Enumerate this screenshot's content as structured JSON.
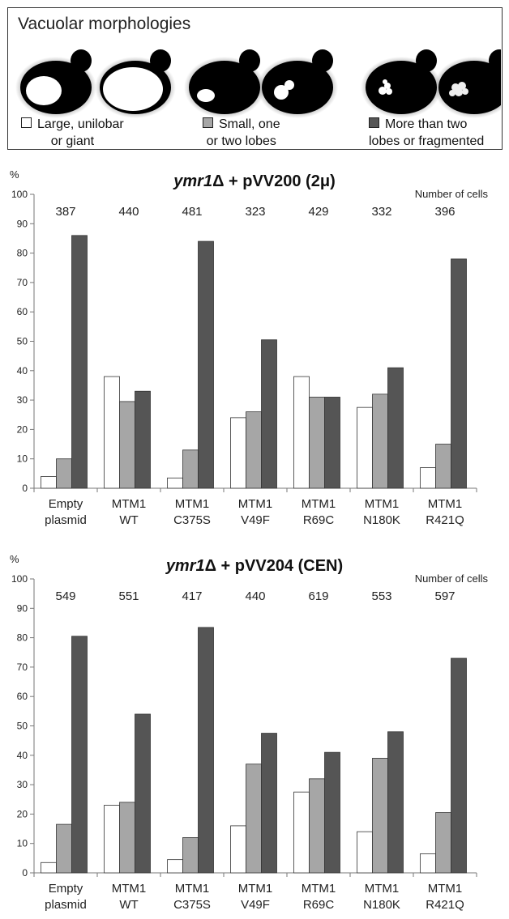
{
  "legend": {
    "title": "Vacuolar morphologies",
    "items": [
      {
        "line1": "Large, unilobar",
        "line2": "or giant",
        "color": "#ffffff"
      },
      {
        "line1": "Small, one",
        "line2": "or two lobes",
        "color": "#a6a6a6"
      },
      {
        "line1": "More than two",
        "line2": "lobes or fragmented",
        "color": "#555555"
      }
    ]
  },
  "chart_data": [
    {
      "type": "bar",
      "title": "ymr1Δ + pVV200 (2μ)",
      "title_italic": "ymr1",
      "title_rest": "Δ + pVV200 (2μ)",
      "unit_label": "%",
      "counts_label": "Number of cells",
      "ylim": [
        0,
        100
      ],
      "yticks": [
        "0",
        "10",
        "20",
        "30",
        "40",
        "50",
        "60",
        "70",
        "80",
        "90",
        "100"
      ],
      "categories": [
        [
          "Empty",
          "plasmid"
        ],
        [
          "MTM1",
          "WT"
        ],
        [
          "MTM1",
          "C375S"
        ],
        [
          "MTM1",
          "V49F"
        ],
        [
          "MTM1",
          "R69C"
        ],
        [
          "MTM1",
          "N180K"
        ],
        [
          "MTM1",
          "R421Q"
        ]
      ],
      "cell_counts": [
        "387",
        "440",
        "481",
        "323",
        "429",
        "332",
        "396"
      ],
      "series_colors": [
        "#ffffff",
        "#a6a6a6",
        "#555555"
      ],
      "series": [
        {
          "values": [
            4,
            38,
            3.5,
            24,
            38,
            27.5,
            7
          ]
        },
        {
          "values": [
            10,
            29.5,
            13,
            26,
            31,
            32,
            15
          ]
        },
        {
          "values": [
            86,
            33,
            84,
            50.5,
            31,
            41,
            78
          ]
        }
      ]
    },
    {
      "type": "bar",
      "title": "ymr1Δ + pVV204 (CEN)",
      "title_italic": "ymr1",
      "title_rest": "Δ + pVV204 (CEN)",
      "unit_label": "%",
      "counts_label": "Number of cells",
      "ylim": [
        0,
        100
      ],
      "yticks": [
        "0",
        "10",
        "20",
        "30",
        "40",
        "50",
        "60",
        "70",
        "80",
        "90",
        "100"
      ],
      "categories": [
        [
          "Empty",
          "plasmid"
        ],
        [
          "MTM1",
          "WT"
        ],
        [
          "MTM1",
          "C375S"
        ],
        [
          "MTM1",
          "V49F"
        ],
        [
          "MTM1",
          "R69C"
        ],
        [
          "MTM1",
          "N180K"
        ],
        [
          "MTM1",
          "R421Q"
        ]
      ],
      "cell_counts": [
        "549",
        "551",
        "417",
        "440",
        "619",
        "553",
        "597"
      ],
      "series_colors": [
        "#ffffff",
        "#a6a6a6",
        "#555555"
      ],
      "series": [
        {
          "values": [
            3.5,
            23,
            4.5,
            16,
            27.5,
            14,
            6.5
          ]
        },
        {
          "values": [
            16.5,
            24,
            12,
            37,
            32,
            39,
            20.5
          ]
        },
        {
          "values": [
            80.5,
            54,
            83.5,
            47.5,
            41,
            48,
            73
          ]
        }
      ]
    }
  ]
}
